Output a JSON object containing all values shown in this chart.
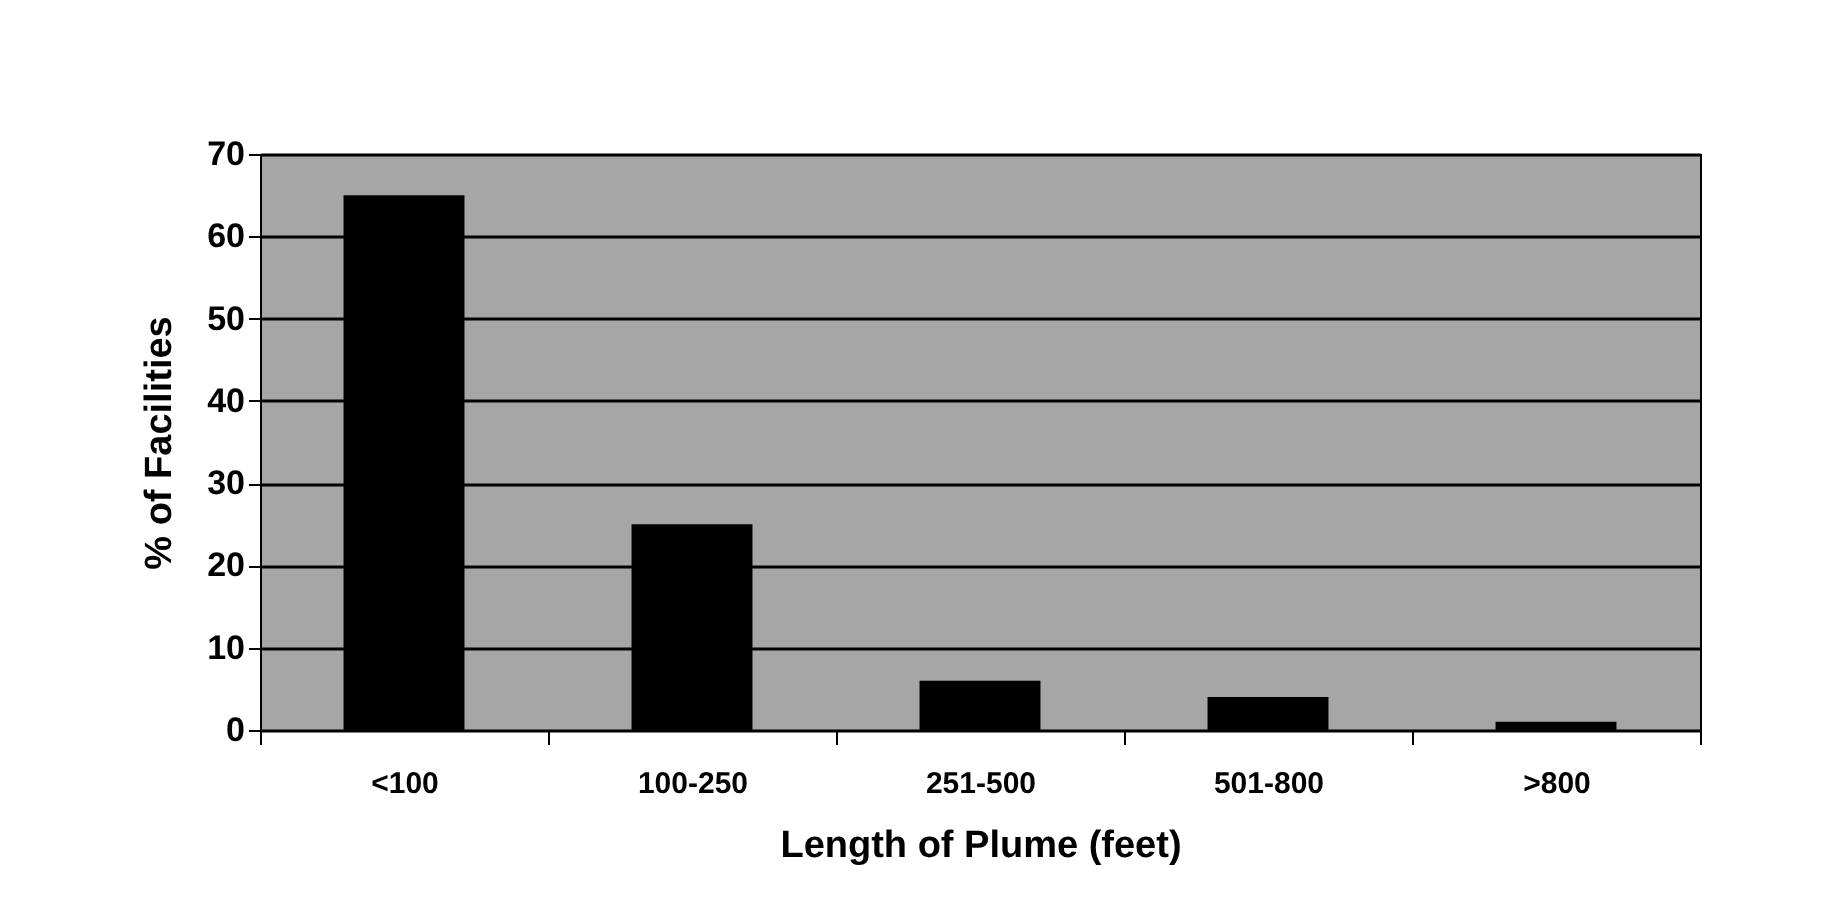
{
  "chart_data": {
    "type": "bar",
    "xlabel": "Length of Plume (feet)",
    "ylabel": "% of Facilities",
    "categories": [
      "<100",
      "100-250",
      "251-500",
      "501-800",
      ">800"
    ],
    "values": [
      65,
      25,
      6,
      4,
      1
    ],
    "color": "#000000",
    "ylim": [
      0,
      70
    ],
    "yticks": [
      0,
      10,
      20,
      30,
      40,
      50,
      60,
      70
    ],
    "grid": "y"
  }
}
